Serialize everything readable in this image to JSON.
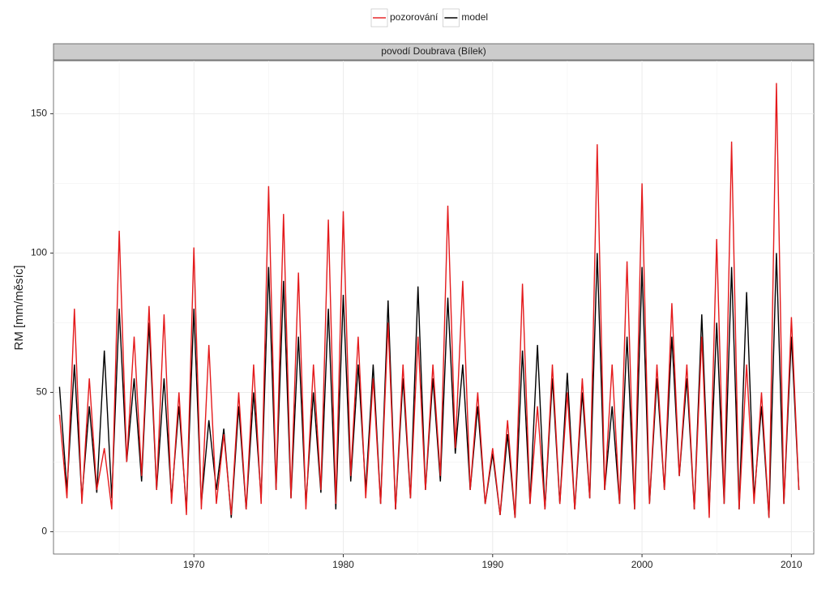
{
  "chart_data": {
    "type": "line",
    "panel_title": "povodí Doubrava (Bílek)",
    "y_label": "RM [mm/měsíc]",
    "x": [
      1961,
      1961.5,
      1962,
      1962.5,
      1963,
      1963.5,
      1964,
      1964.5,
      1965,
      1965.5,
      1966,
      1966.5,
      1967,
      1967.5,
      1968,
      1968.5,
      1969,
      1969.5,
      1970,
      1970.5,
      1971,
      1971.5,
      1972,
      1972.5,
      1973,
      1973.5,
      1974,
      1974.5,
      1975,
      1975.5,
      1976,
      1976.5,
      1977,
      1977.5,
      1978,
      1978.5,
      1979,
      1979.5,
      1980,
      1980.5,
      1981,
      1981.5,
      1982,
      1982.5,
      1983,
      1983.5,
      1984,
      1984.5,
      1985,
      1985.5,
      1986,
      1986.5,
      1987,
      1987.5,
      1988,
      1988.5,
      1989,
      1989.5,
      1990,
      1990.5,
      1991,
      1991.5,
      1992,
      1992.5,
      1993,
      1993.5,
      1994,
      1994.5,
      1995,
      1995.5,
      1996,
      1996.5,
      1997,
      1997.5,
      1998,
      1998.5,
      1999,
      1999.5,
      2000,
      2000.5,
      2001,
      2001.5,
      2002,
      2002.5,
      2003,
      2003.5,
      2004,
      2004.5,
      2005,
      2005.5,
      2006,
      2006.5,
      2007,
      2007.5,
      2008,
      2008.5,
      2009,
      2009.5,
      2010,
      2010.5
    ],
    "series": [
      {
        "name": "model",
        "color": "#000000",
        "values": [
          52,
          15,
          60,
          12,
          45,
          14,
          65,
          12,
          80,
          25,
          55,
          18,
          75,
          15,
          55,
          12,
          45,
          8,
          80,
          10,
          40,
          15,
          37,
          5,
          45,
          8,
          50,
          12,
          95,
          15,
          90,
          12,
          70,
          10,
          50,
          14,
          80,
          8,
          85,
          18,
          60,
          15,
          60,
          10,
          83,
          8,
          55,
          12,
          88,
          15,
          55,
          18,
          84,
          28,
          60,
          15,
          45,
          10,
          28,
          6,
          35,
          5,
          65,
          10,
          67,
          8,
          55,
          10,
          57,
          8,
          50,
          12,
          100,
          15,
          45,
          10,
          70,
          8,
          95,
          10,
          55,
          15,
          70,
          20,
          55,
          8,
          78,
          8,
          75,
          10,
          95,
          8,
          86,
          12,
          45,
          5,
          100,
          10,
          70,
          15
        ]
      },
      {
        "name": "pozorování",
        "color": "#e41a1c",
        "values": [
          42,
          12,
          80,
          10,
          55,
          15,
          30,
          8,
          108,
          25,
          70,
          20,
          81,
          15,
          78,
          10,
          50,
          6,
          102,
          8,
          67,
          10,
          35,
          6,
          50,
          8,
          60,
          10,
          124,
          15,
          114,
          12,
          93,
          8,
          60,
          15,
          112,
          10,
          115,
          20,
          70,
          12,
          55,
          10,
          75,
          8,
          60,
          12,
          70,
          15,
          60,
          20,
          117,
          30,
          90,
          15,
          50,
          10,
          30,
          6,
          40,
          5,
          89,
          10,
          45,
          8,
          60,
          10,
          50,
          8,
          55,
          12,
          139,
          15,
          60,
          10,
          97,
          8,
          125,
          10,
          60,
          15,
          82,
          20,
          60,
          8,
          70,
          5,
          105,
          10,
          140,
          8,
          60,
          10,
          50,
          5,
          161,
          10,
          77,
          15
        ]
      }
    ],
    "legend_order": [
      1,
      0
    ],
    "xlim": [
      1960.6,
      2011.5
    ],
    "xticks": [
      1970,
      1980,
      1990,
      2000,
      2010
    ],
    "ylim": [
      -8,
      169
    ],
    "yticks": [
      0,
      50,
      100,
      150
    ],
    "grid": true
  }
}
